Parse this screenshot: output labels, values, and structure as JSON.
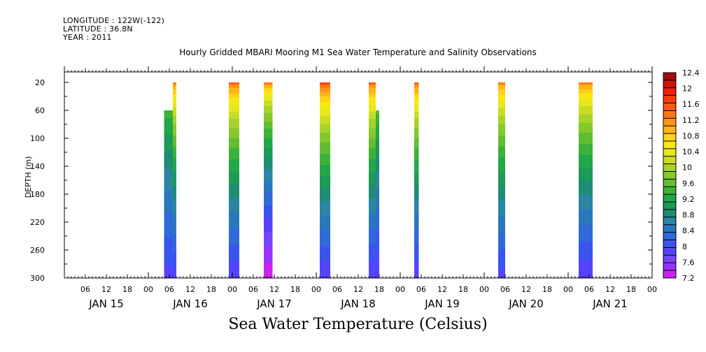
{
  "header": {
    "longitude": "LONGITUDE : 122W(-122)",
    "latitude": "LATITUDE : 36.8N",
    "year": "YEAR : 2011"
  },
  "title": "Hourly Gridded MBARI Mooring M1 Sea Water Temperature and Salinity Observations",
  "bottom_title": "Sea Water Temperature (Celsius)",
  "chart_data": {
    "type": "heatmap",
    "title": "Hourly Gridded MBARI Mooring M1 Sea Water Temperature and Salinity Observations",
    "colorbar_title": "Sea Water Temperature (Celsius)",
    "ylabel": "DEPTH (m)",
    "y_ticks": [
      20,
      60,
      100,
      140,
      180,
      220,
      260,
      300
    ],
    "ylim": [
      300,
      5
    ],
    "x_range_hours": [
      0,
      168
    ],
    "x_hour_ticks": [
      "06",
      "12",
      "18",
      "00"
    ],
    "day_labels": [
      "JAN 15",
      "JAN 16",
      "JAN 17",
      "JAN 18",
      "JAN 19",
      "JAN 20",
      "JAN 21"
    ],
    "colorbar": {
      "levels": [
        7.2,
        7.4,
        7.6,
        7.8,
        8.0,
        8.2,
        8.4,
        8.6,
        8.8,
        9.0,
        9.2,
        9.4,
        9.6,
        9.8,
        10.0,
        10.2,
        10.4,
        10.6,
        10.8,
        11.0,
        11.2,
        11.4,
        11.6,
        11.8,
        12.0,
        12.2,
        12.4
      ],
      "labels": [
        "7.2",
        "7.6",
        "8",
        "8.4",
        "8.8",
        "9.2",
        "9.6",
        "10",
        "10.4",
        "10.8",
        "11.2",
        "11.6",
        "12",
        "12.4"
      ],
      "colors": [
        "#cc22ee",
        "#9933ff",
        "#7744ff",
        "#5544ff",
        "#3a55ee",
        "#2f6ad8",
        "#2a78bc",
        "#2a86a2",
        "#1f8c74",
        "#1c9a56",
        "#22a848",
        "#3db23a",
        "#62bd32",
        "#84c82c",
        "#a6d22a",
        "#c8dd24",
        "#e6e81c",
        "#f7e812",
        "#ffd21a",
        "#ffb418",
        "#ff9614",
        "#ff7812",
        "#ff5a10",
        "#ff3c0e",
        "#f01e0c",
        "#c8140c",
        "#a00c0c"
      ]
    },
    "columns": [
      {
        "start_hour": 28.5,
        "end_hour": 31.0,
        "top_depth": 60,
        "bottom_depth": 300,
        "surface_temp": 10.4,
        "bottom_temp": 7.9
      },
      {
        "start_hour": 31.0,
        "end_hour": 32.0,
        "top_depth": 20,
        "bottom_depth": 300,
        "surface_temp": 11.6,
        "bottom_temp": 7.9
      },
      {
        "start_hour": 47.0,
        "end_hour": 50.0,
        "top_depth": 20,
        "bottom_depth": 300,
        "surface_temp": 11.8,
        "bottom_temp": 7.8
      },
      {
        "start_hour": 57.0,
        "end_hour": 59.5,
        "top_depth": 20,
        "bottom_depth": 300,
        "surface_temp": 11.6,
        "bottom_temp": 7.2
      },
      {
        "start_hour": 73.0,
        "end_hour": 76.0,
        "top_depth": 20,
        "bottom_depth": 300,
        "surface_temp": 12.0,
        "bottom_temp": 7.8
      },
      {
        "start_hour": 87.0,
        "end_hour": 89.0,
        "top_depth": 20,
        "bottom_depth": 300,
        "surface_temp": 11.8,
        "bottom_temp": 7.8
      },
      {
        "start_hour": 89.0,
        "end_hour": 90.0,
        "top_depth": 60,
        "bottom_depth": 300,
        "surface_temp": 10.6,
        "bottom_temp": 7.8
      },
      {
        "start_hour": 100.0,
        "end_hour": 101.3,
        "top_depth": 20,
        "bottom_depth": 300,
        "surface_temp": 11.8,
        "bottom_temp": 7.8
      },
      {
        "start_hour": 124.0,
        "end_hour": 126.0,
        "top_depth": 20,
        "bottom_depth": 300,
        "surface_temp": 11.6,
        "bottom_temp": 7.9
      },
      {
        "start_hour": 147.0,
        "end_hour": 151.0,
        "top_depth": 20,
        "bottom_depth": 300,
        "surface_temp": 11.6,
        "bottom_temp": 7.8
      }
    ]
  }
}
